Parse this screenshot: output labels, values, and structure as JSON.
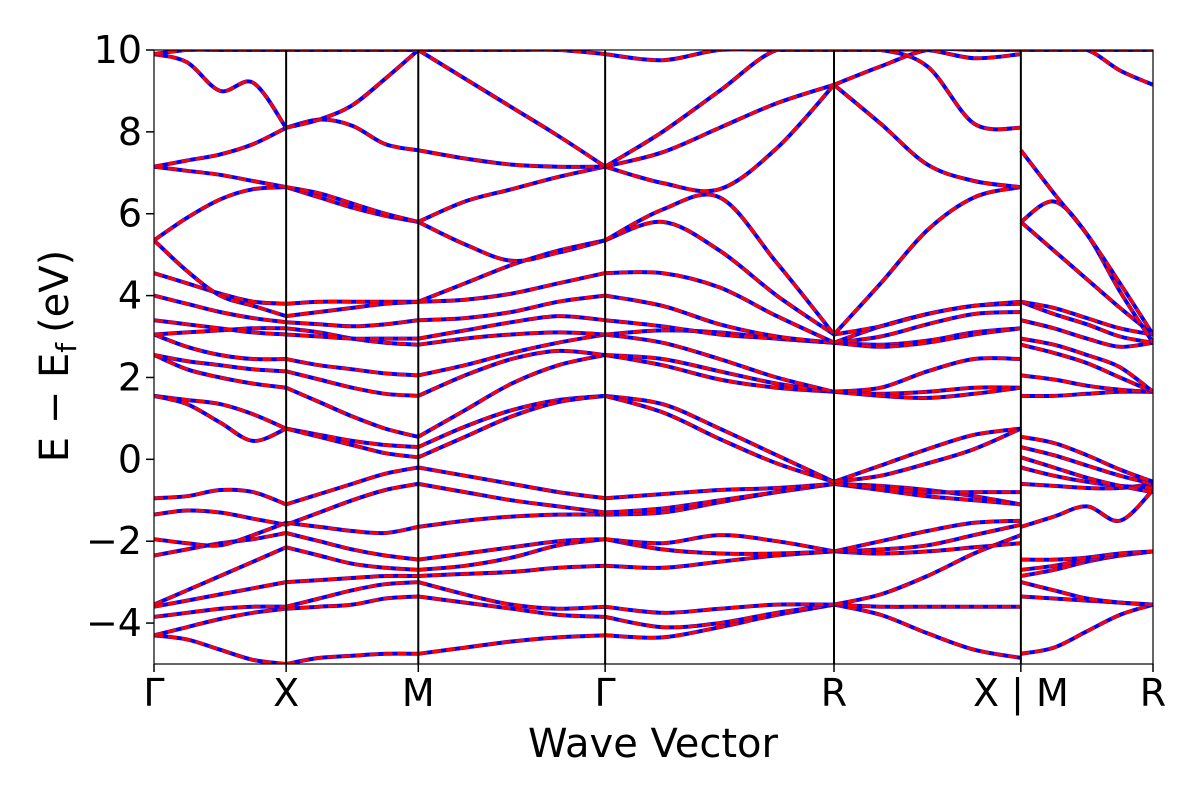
{
  "chart_data": {
    "type": "line",
    "title": "",
    "xlabel": "Wave Vector",
    "ylabel": "E − E",
    "ylabel_subscript": "f",
    "ylabel_unit": "(eV)",
    "ylim": [
      -5,
      10
    ],
    "yticks": [
      {
        "value": 10,
        "label": "10"
      },
      {
        "value": 8,
        "label": "8"
      },
      {
        "value": 6,
        "label": "6"
      },
      {
        "value": 4,
        "label": "4"
      },
      {
        "value": 2,
        "label": "2"
      },
      {
        "value": 0,
        "label": "0"
      },
      {
        "value": -2,
        "label": "−2"
      },
      {
        "value": -4,
        "label": "−4"
      }
    ],
    "kpath": [
      {
        "label": "Γ",
        "pos": 0
      },
      {
        "label": "X",
        "pos": 1
      },
      {
        "label": "M",
        "pos": 2
      },
      {
        "label": "Γ",
        "pos": 3.414
      },
      {
        "label": "R",
        "pos": 5.146
      },
      {
        "label": "X | M",
        "pos": 6.56
      },
      {
        "label": "R",
        "pos": 7.56
      }
    ],
    "grid": false,
    "legend": "none",
    "series": [
      {
        "style": "dashed",
        "color": "#0000ff"
      },
      {
        "style": "solid",
        "color": "#ff0000"
      }
    ],
    "segments": [
      {
        "range": [
          0,
          1
        ],
        "bands": [
          [
            -4.3,
            -4.4,
            -4.65,
            -4.9,
            -5.0
          ],
          [
            -4.3,
            -4.1,
            -3.9,
            -3.75,
            -3.65
          ],
          [
            -3.85,
            -3.75,
            -3.65,
            -3.6,
            -3.6
          ],
          [
            -3.6,
            -3.45,
            -3.3,
            -3.15,
            -3.0
          ],
          [
            -3.55,
            -3.2,
            -2.85,
            -2.5,
            -2.15
          ],
          [
            -2.35,
            -2.2,
            -2.05,
            -1.95,
            -1.8
          ],
          [
            -1.95,
            -2.05,
            -2.1,
            -1.85,
            -1.55
          ],
          [
            -1.35,
            -1.25,
            -1.3,
            -1.45,
            -1.6
          ],
          [
            -0.95,
            -0.9,
            -0.75,
            -0.8,
            -1.1
          ],
          [
            1.55,
            1.45,
            1.35,
            1.1,
            0.75
          ],
          [
            1.55,
            1.35,
            0.9,
            0.45,
            0.75
          ],
          [
            2.55,
            2.2,
            2.0,
            1.85,
            1.75
          ],
          [
            2.55,
            2.4,
            2.3,
            2.2,
            2.15
          ],
          [
            3.05,
            2.75,
            2.55,
            2.45,
            2.45
          ],
          [
            3.05,
            3.1,
            3.15,
            3.2,
            3.2
          ],
          [
            3.4,
            3.3,
            3.2,
            3.1,
            3.05
          ],
          [
            4.0,
            3.8,
            3.6,
            3.45,
            3.35
          ],
          [
            4.55,
            4.3,
            4.05,
            3.85,
            3.8
          ],
          [
            5.35,
            4.6,
            4.0,
            3.75,
            3.5
          ],
          [
            5.35,
            5.9,
            6.35,
            6.6,
            6.65
          ],
          [
            7.15,
            7.05,
            6.95,
            6.8,
            6.65
          ],
          [
            7.15,
            7.3,
            7.45,
            7.7,
            8.1
          ],
          [
            9.9,
            9.7,
            9.0,
            9.2,
            8.1
          ],
          [
            9.9,
            10.0,
            10.0,
            10.0,
            10.0
          ]
        ]
      },
      {
        "range": [
          1,
          2
        ],
        "bands": [
          [
            -5.0,
            -4.85,
            -4.8,
            -4.75,
            -4.75
          ],
          [
            -3.65,
            -3.6,
            -3.55,
            -3.4,
            -3.35
          ],
          [
            -3.6,
            -3.4,
            -3.2,
            -3.05,
            -3.0
          ],
          [
            -3.0,
            -2.95,
            -2.9,
            -2.85,
            -2.85
          ],
          [
            -2.15,
            -2.35,
            -2.55,
            -2.65,
            -2.7
          ],
          [
            -1.8,
            -2.0,
            -2.2,
            -2.35,
            -2.45
          ],
          [
            -1.55,
            -1.65,
            -1.75,
            -1.8,
            -1.65
          ],
          [
            -1.6,
            -1.3,
            -1.0,
            -0.75,
            -0.6
          ],
          [
            -1.1,
            -0.85,
            -0.6,
            -0.35,
            -0.2
          ],
          [
            0.75,
            0.6,
            0.45,
            0.35,
            0.3
          ],
          [
            0.75,
            0.55,
            0.35,
            0.15,
            0.05
          ],
          [
            1.75,
            1.4,
            1.05,
            0.75,
            0.55
          ],
          [
            2.15,
            1.95,
            1.75,
            1.6,
            1.55
          ],
          [
            2.45,
            2.3,
            2.2,
            2.1,
            2.05
          ],
          [
            3.2,
            3.1,
            2.95,
            2.85,
            2.8
          ],
          [
            3.05,
            3.0,
            2.95,
            2.95,
            2.95
          ],
          [
            3.35,
            3.3,
            3.25,
            3.3,
            3.4
          ],
          [
            3.8,
            3.85,
            3.85,
            3.85,
            3.85
          ],
          [
            3.5,
            3.6,
            3.7,
            3.8,
            3.85
          ],
          [
            6.65,
            6.4,
            6.15,
            5.95,
            5.8
          ],
          [
            6.65,
            6.5,
            6.25,
            6.0,
            5.8
          ],
          [
            8.1,
            8.3,
            8.15,
            7.7,
            7.55
          ],
          [
            8.1,
            8.3,
            8.65,
            9.3,
            10.0
          ],
          [
            10.0,
            10.0,
            10.0,
            10.0,
            10.0
          ]
        ]
      },
      {
        "range": [
          2,
          3.414
        ],
        "bands": [
          [
            -4.75,
            -4.6,
            -4.45,
            -4.35,
            -4.3
          ],
          [
            -3.35,
            -3.5,
            -3.65,
            -3.8,
            -3.85
          ],
          [
            -3.0,
            -3.3,
            -3.55,
            -3.65,
            -3.6
          ],
          [
            -2.85,
            -2.8,
            -2.75,
            -2.65,
            -2.6
          ],
          [
            -2.7,
            -2.6,
            -2.4,
            -2.1,
            -1.95
          ],
          [
            -2.45,
            -2.3,
            -2.15,
            -2.0,
            -1.95
          ],
          [
            -1.65,
            -1.5,
            -1.4,
            -1.35,
            -1.35
          ],
          [
            -0.6,
            -0.8,
            -1.0,
            -1.15,
            -1.3
          ],
          [
            -0.2,
            -0.4,
            -0.6,
            -0.8,
            -0.95
          ],
          [
            0.3,
            0.8,
            1.2,
            1.45,
            1.55
          ],
          [
            0.05,
            0.55,
            1.05,
            1.4,
            1.55
          ],
          [
            0.55,
            1.2,
            1.85,
            2.3,
            2.55
          ],
          [
            1.55,
            2.05,
            2.45,
            2.65,
            2.55
          ],
          [
            2.05,
            2.3,
            2.6,
            2.85,
            3.05
          ],
          [
            2.8,
            2.95,
            3.05,
            3.1,
            3.05
          ],
          [
            2.95,
            3.15,
            3.35,
            3.5,
            3.4
          ],
          [
            3.4,
            3.45,
            3.6,
            3.85,
            4.0
          ],
          [
            3.85,
            3.9,
            4.05,
            4.3,
            4.55
          ],
          [
            3.85,
            4.3,
            4.75,
            5.1,
            5.35
          ],
          [
            5.8,
            5.25,
            4.85,
            5.05,
            5.35
          ],
          [
            5.8,
            6.3,
            6.6,
            6.9,
            7.15
          ],
          [
            7.55,
            7.35,
            7.2,
            7.15,
            7.15
          ],
          [
            10.0,
            9.3,
            8.6,
            7.9,
            7.15
          ],
          [
            10.0,
            10.0,
            10.0,
            10.0,
            9.9
          ]
        ]
      },
      {
        "range": [
          3.414,
          5.146
        ],
        "bands": [
          [
            -4.3,
            -4.35,
            -4.1,
            -3.8,
            -3.55
          ],
          [
            -3.85,
            -4.1,
            -4.0,
            -3.75,
            -3.55
          ],
          [
            -3.6,
            -3.75,
            -3.65,
            -3.55,
            -3.55
          ],
          [
            -2.6,
            -2.65,
            -2.5,
            -2.35,
            -2.25
          ],
          [
            -1.95,
            -2.2,
            -2.3,
            -2.3,
            -2.25
          ],
          [
            -1.95,
            -2.05,
            -1.85,
            -2.0,
            -2.25
          ],
          [
            -1.35,
            -1.3,
            -1.05,
            -0.8,
            -0.6
          ],
          [
            -1.3,
            -1.2,
            -1.0,
            -0.8,
            -0.6
          ],
          [
            -0.95,
            -0.85,
            -0.75,
            -0.7,
            -0.6
          ],
          [
            1.55,
            1.35,
            0.75,
            0.1,
            -0.55
          ],
          [
            1.55,
            1.15,
            0.5,
            -0.1,
            -0.55
          ],
          [
            2.55,
            2.3,
            1.95,
            1.75,
            1.65
          ],
          [
            2.55,
            2.45,
            2.15,
            1.85,
            1.65
          ],
          [
            3.05,
            2.85,
            2.45,
            2.0,
            1.65
          ],
          [
            3.05,
            3.15,
            3.1,
            2.95,
            2.85
          ],
          [
            3.4,
            3.25,
            3.05,
            2.95,
            2.85
          ],
          [
            4.0,
            3.75,
            3.3,
            3.0,
            2.85
          ],
          [
            4.55,
            4.55,
            4.2,
            3.5,
            2.85
          ],
          [
            5.35,
            5.8,
            5.1,
            4.0,
            3.05
          ],
          [
            5.35,
            6.1,
            6.4,
            4.8,
            3.05
          ],
          [
            7.15,
            6.75,
            6.6,
            7.6,
            9.15
          ],
          [
            7.15,
            7.5,
            8.1,
            8.7,
            9.15
          ],
          [
            7.15,
            8.0,
            9.0,
            10.0,
            10.0
          ],
          [
            9.9,
            9.75,
            10.0,
            10.0,
            10.0
          ]
        ]
      },
      {
        "range": [
          5.146,
          6.56
        ],
        "bands": [
          [
            -3.55,
            -3.8,
            -4.25,
            -4.65,
            -4.85
          ],
          [
            -3.55,
            -3.6,
            -3.6,
            -3.6,
            -3.6
          ],
          [
            -3.55,
            -3.3,
            -2.85,
            -2.3,
            -1.85
          ],
          [
            -2.25,
            -2.3,
            -2.25,
            -2.15,
            -2.05
          ],
          [
            -2.25,
            -2.2,
            -2.1,
            -1.85,
            -1.6
          ],
          [
            -2.25,
            -2.0,
            -1.75,
            -1.55,
            -1.5
          ],
          [
            -0.6,
            -0.65,
            -0.75,
            -0.9,
            -1.1
          ],
          [
            -0.6,
            -0.75,
            -0.9,
            -1.0,
            -1.1
          ],
          [
            -0.6,
            -0.7,
            -0.8,
            -0.8,
            -0.8
          ],
          [
            -0.55,
            -0.15,
            0.25,
            0.6,
            0.75
          ],
          [
            -0.55,
            -0.4,
            -0.1,
            0.25,
            0.75
          ],
          [
            1.65,
            1.6,
            1.65,
            1.75,
            1.75
          ],
          [
            1.65,
            1.55,
            1.5,
            1.6,
            1.75
          ],
          [
            1.65,
            1.75,
            2.15,
            2.45,
            2.45
          ],
          [
            2.85,
            2.8,
            2.9,
            3.1,
            3.2
          ],
          [
            2.85,
            2.75,
            2.85,
            3.05,
            3.2
          ],
          [
            2.85,
            3.0,
            3.3,
            3.55,
            3.6
          ],
          [
            2.85,
            3.25,
            3.55,
            3.75,
            3.8
          ],
          [
            3.05,
            3.25,
            3.55,
            3.75,
            3.85
          ],
          [
            3.05,
            4.3,
            5.6,
            6.4,
            6.65
          ],
          [
            9.15,
            8.2,
            7.2,
            6.8,
            6.65
          ],
          [
            9.15,
            9.6,
            10.0,
            10.0,
            10.0
          ],
          [
            10.0,
            10.0,
            9.6,
            8.2,
            8.1
          ],
          [
            10.0,
            10.0,
            10.0,
            9.8,
            9.9
          ]
        ]
      },
      {
        "range": [
          6.56,
          7.56
        ],
        "bands": [
          [
            -4.75,
            -4.6,
            -4.2,
            -3.8,
            -3.55
          ],
          [
            -3.35,
            -3.4,
            -3.45,
            -3.5,
            -3.55
          ],
          [
            -3.0,
            -3.2,
            -3.4,
            -3.5,
            -3.55
          ],
          [
            -2.85,
            -2.7,
            -2.5,
            -2.35,
            -2.25
          ],
          [
            -2.7,
            -2.6,
            -2.45,
            -2.35,
            -2.25
          ],
          [
            -2.45,
            -2.45,
            -2.4,
            -2.3,
            -2.25
          ],
          [
            -1.65,
            -1.4,
            -1.15,
            -1.5,
            -0.75
          ],
          [
            -0.6,
            -0.65,
            -0.7,
            -0.7,
            -0.6
          ],
          [
            -0.2,
            -0.4,
            -0.55,
            -0.65,
            -0.7
          ],
          [
            0.3,
            0.1,
            -0.15,
            -0.4,
            -0.6
          ],
          [
            0.05,
            -0.2,
            -0.45,
            -0.65,
            -0.8
          ],
          [
            0.55,
            0.4,
            0.1,
            -0.25,
            -0.55
          ],
          [
            1.55,
            1.55,
            1.6,
            1.65,
            1.65
          ],
          [
            2.05,
            1.95,
            1.8,
            1.7,
            1.65
          ],
          [
            2.8,
            2.6,
            2.35,
            2.0,
            1.65
          ],
          [
            2.95,
            2.8,
            2.55,
            2.25,
            1.65
          ],
          [
            3.4,
            3.2,
            2.95,
            2.75,
            2.85
          ],
          [
            3.85,
            3.55,
            3.3,
            3.0,
            2.85
          ],
          [
            3.85,
            3.7,
            3.45,
            3.2,
            3.05
          ],
          [
            5.8,
            5.1,
            4.4,
            3.7,
            3.05
          ],
          [
            5.8,
            6.3,
            5.5,
            4.1,
            2.85
          ],
          [
            7.55,
            6.5,
            5.5,
            4.3,
            3.05
          ],
          [
            10.0,
            10.0,
            10.0,
            9.5,
            9.15
          ],
          [
            10.0,
            10.0,
            10.0,
            10.0,
            10.0
          ]
        ]
      }
    ]
  }
}
